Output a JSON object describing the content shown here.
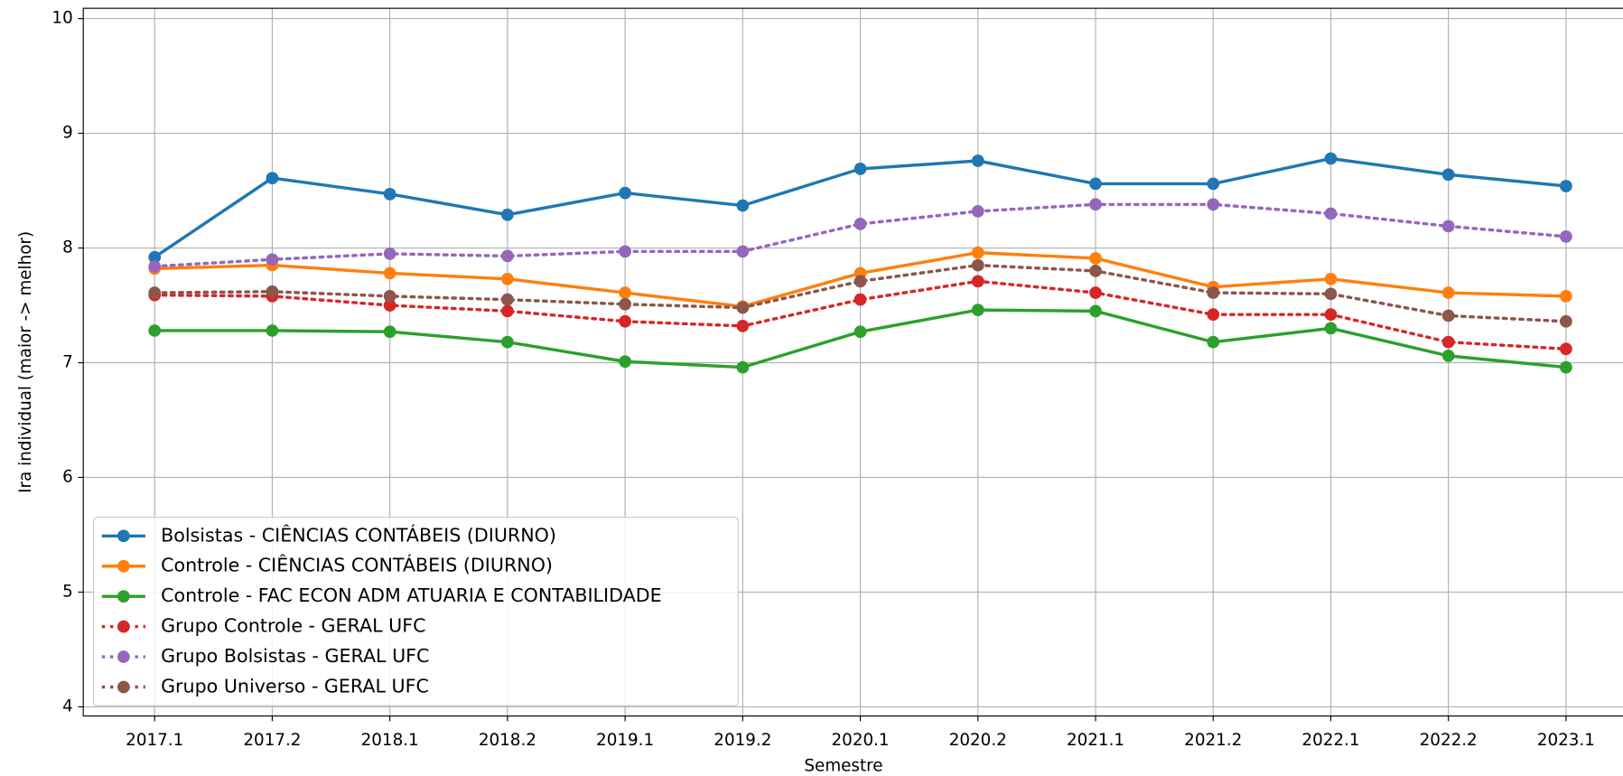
{
  "chart_data": {
    "type": "line",
    "x_label": "Semestre",
    "y_label": "Ira individual (maior -> melhor)",
    "categories": [
      "2017.1",
      "2017.2",
      "2018.1",
      "2018.2",
      "2019.1",
      "2019.2",
      "2020.1",
      "2020.2",
      "2021.1",
      "2021.2",
      "2022.1",
      "2022.2",
      "2023.1"
    ],
    "ylim": [
      3.92,
      10.09
    ],
    "yticks": [
      4,
      5,
      6,
      7,
      8,
      9,
      10
    ],
    "grid": true,
    "legend": "lower left",
    "series": [
      {
        "name": "Bolsistas - CIÊNCIAS CONTÁBEIS (DIURNO)",
        "color": "#1f77b4",
        "linestyle": "solid",
        "values": [
          7.92,
          8.61,
          8.47,
          8.29,
          8.48,
          8.37,
          8.69,
          8.76,
          8.56,
          8.56,
          8.78,
          8.64,
          8.54
        ]
      },
      {
        "name": "Controle - CIÊNCIAS CONTÁBEIS (DIURNO)",
        "color": "#ff7f0e",
        "linestyle": "solid",
        "values": [
          7.82,
          7.85,
          7.78,
          7.73,
          7.61,
          7.49,
          7.78,
          7.96,
          7.91,
          7.66,
          7.73,
          7.61,
          7.58
        ]
      },
      {
        "name": "Controle - FAC ECON ADM ATUARIA E CONTABILIDADE",
        "color": "#2ca02c",
        "linestyle": "solid",
        "values": [
          7.28,
          7.28,
          7.27,
          7.18,
          7.01,
          6.96,
          7.27,
          7.46,
          7.45,
          7.18,
          7.3,
          7.06,
          6.96
        ]
      },
      {
        "name": "Grupo Controle - GERAL UFC",
        "color": "#d62728",
        "linestyle": "dotted",
        "values": [
          7.59,
          7.58,
          7.5,
          7.45,
          7.36,
          7.32,
          7.55,
          7.71,
          7.61,
          7.42,
          7.42,
          7.18,
          7.12
        ]
      },
      {
        "name": "Grupo Bolsistas - GERAL UFC",
        "color": "#9467bd",
        "linestyle": "dotted",
        "values": [
          7.84,
          7.9,
          7.95,
          7.93,
          7.97,
          7.97,
          8.21,
          8.32,
          8.38,
          8.38,
          8.3,
          8.19,
          8.1
        ]
      },
      {
        "name": "Grupo Universo - GERAL UFC",
        "color": "#8c564b",
        "linestyle": "dotted",
        "values": [
          7.61,
          7.62,
          7.58,
          7.55,
          7.51,
          7.48,
          7.71,
          7.85,
          7.8,
          7.61,
          7.6,
          7.41,
          7.36
        ]
      }
    ]
  }
}
